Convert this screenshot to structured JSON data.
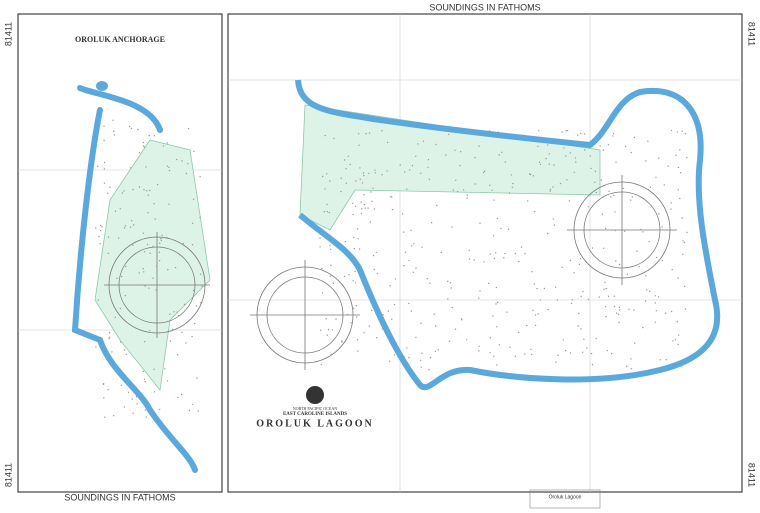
{
  "chart_number": "81411",
  "header": {
    "title": "SOUNDINGS IN FATHOMS"
  },
  "footer": {
    "title": "SOUNDINGS IN FATHOMS"
  },
  "inset": {
    "title": "OROLUK ANCHORAGE"
  },
  "main": {
    "region": "NORTH PACIFIC OCEAN",
    "subregion": "EAST CAROLINE ISLANDS",
    "title": "OROLUK LAGOON"
  },
  "title_block": {
    "title": "Oroluk Lagoon"
  }
}
